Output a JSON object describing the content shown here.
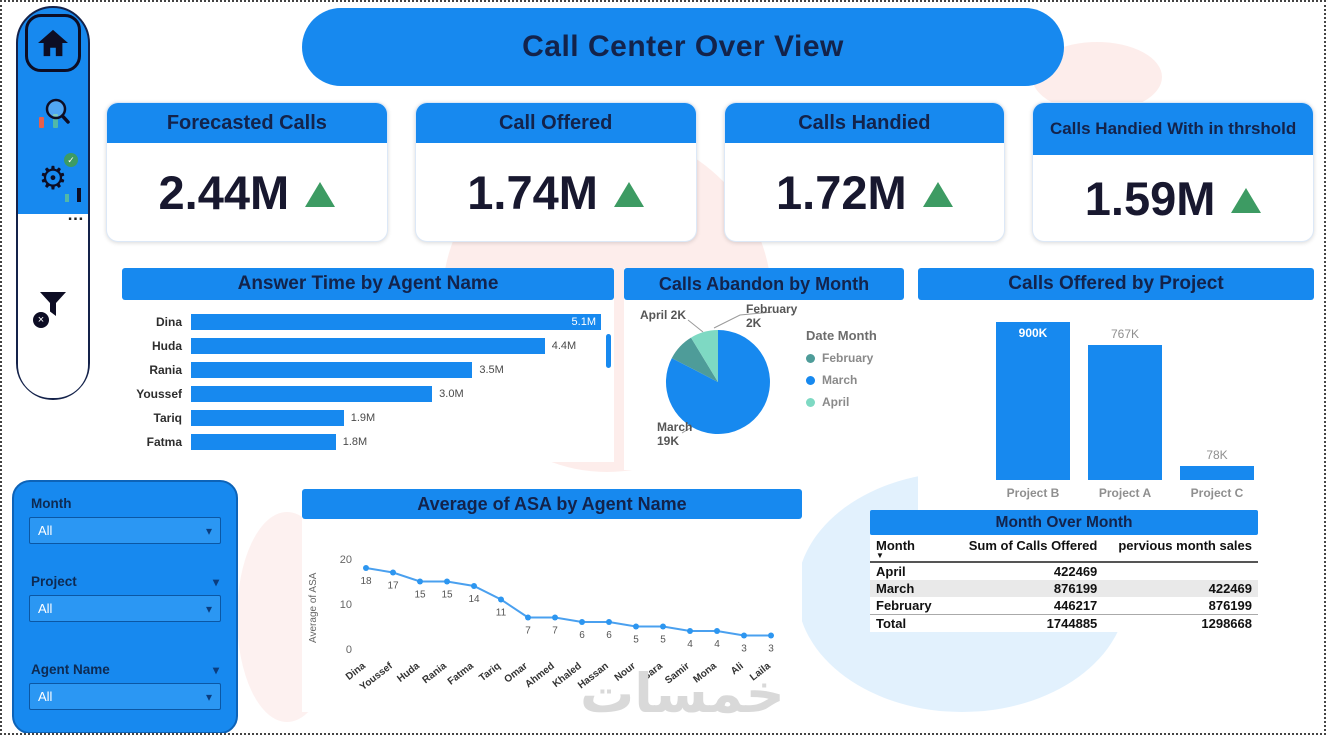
{
  "page": {
    "title": "Call Center Over View",
    "watermark": "خمسات"
  },
  "colors": {
    "primary_blue": "#1789EF",
    "navy": "#13234B",
    "green": "#3D9B63",
    "teal": "#4E9C99",
    "light_teal": "#7ED9C3"
  },
  "icons": {
    "home": "svg:house",
    "chart-search": "svg:magnifier-over-bars",
    "gear": "⚙",
    "check-badge": "✓",
    "more": "…",
    "filter": "svg:funnel",
    "close-badge": "×",
    "sort-desc": "▼",
    "chevron-down": "▾",
    "trend-up": "css:green-triangle-up"
  },
  "kpis": [
    {
      "label": "Forecasted Calls",
      "value": "2.44M"
    },
    {
      "label": "Call Offered",
      "value": "1.74M"
    },
    {
      "label": "Calls Handied",
      "value": "1.72M"
    },
    {
      "label": "Calls Handied With in thrshold",
      "value": "1.59M"
    }
  ],
  "filters": {
    "groups": [
      {
        "label": "Month",
        "value": "All"
      },
      {
        "label": "Project",
        "value": "All"
      },
      {
        "label": "Agent Name",
        "value": "All"
      }
    ]
  },
  "chart_data": [
    {
      "id": "answer_time",
      "type": "bar",
      "orientation": "horizontal",
      "title": "Answer Time by Agent Name",
      "categories": [
        "Dina",
        "Huda",
        "Rania",
        "Youssef",
        "Tariq",
        "Fatma"
      ],
      "values": [
        5.1,
        4.4,
        3.5,
        3.0,
        1.9,
        1.8
      ],
      "labels": [
        "5.1M",
        "4.4M",
        "3.5M",
        "3.0M",
        "1.9M",
        "1.8M"
      ],
      "unit": "M",
      "bar_color": "#1789EF",
      "has_scrollbar": true
    },
    {
      "id": "calls_abandon",
      "type": "pie",
      "title": "Calls Abandon by Month",
      "legend_title": "Date Month",
      "slices": [
        {
          "name": "March",
          "value": 19,
          "unit": "K",
          "color": "#1789EF"
        },
        {
          "name": "February",
          "value": 2,
          "unit": "K",
          "color": "#4E9C99"
        },
        {
          "name": "April",
          "value": 2,
          "unit": "K",
          "color": "#7ED9C3"
        }
      ],
      "legend": [
        {
          "name": "February",
          "color": "#4E9C99"
        },
        {
          "name": "March",
          "color": "#1789EF"
        },
        {
          "name": "April",
          "color": "#7ED9C3"
        }
      ],
      "callouts": {
        "april": "April 2K",
        "february": "February\n2K",
        "march": "March\n19K"
      }
    },
    {
      "id": "calls_by_project",
      "type": "bar",
      "orientation": "vertical",
      "title": "Calls Offered by Project",
      "categories": [
        "Project B",
        "Project A",
        "Project C"
      ],
      "values": [
        900,
        767,
        78
      ],
      "labels": [
        "900K",
        "767K",
        "78K"
      ],
      "ymax": 900,
      "bar_color": "#1789EF"
    },
    {
      "id": "asa_by_agent",
      "type": "line",
      "title": "Average of ASA by Agent Name",
      "ylabel": "Average of ASA",
      "yticks": [
        0,
        10,
        20
      ],
      "ylim": [
        0,
        20
      ],
      "categories": [
        "Dina",
        "Youssef",
        "Huda",
        "Rania",
        "Fatma",
        "Tariq",
        "Omar",
        "Ahmed",
        "Khaled",
        "Hassan",
        "Nour",
        "Sara",
        "Samir",
        "Mona",
        "Ali",
        "Laila"
      ],
      "values": [
        18,
        17,
        15,
        15,
        14,
        11,
        7,
        7,
        6,
        6,
        5,
        5,
        4,
        4,
        3,
        3
      ],
      "line_color": "#4AA0EF"
    },
    {
      "id": "month_over_month",
      "type": "table",
      "title": "Month Over Month",
      "columns": [
        "Month",
        "Sum of Calls Offered",
        "pervious month sales"
      ],
      "rows": [
        [
          "April",
          "422469",
          ""
        ],
        [
          "March",
          "876199",
          "422469"
        ],
        [
          "February",
          "446217",
          "876199"
        ],
        [
          "Total",
          "1744885",
          "1298668"
        ]
      ],
      "highlight_row": 1,
      "total_row": 3
    }
  ]
}
